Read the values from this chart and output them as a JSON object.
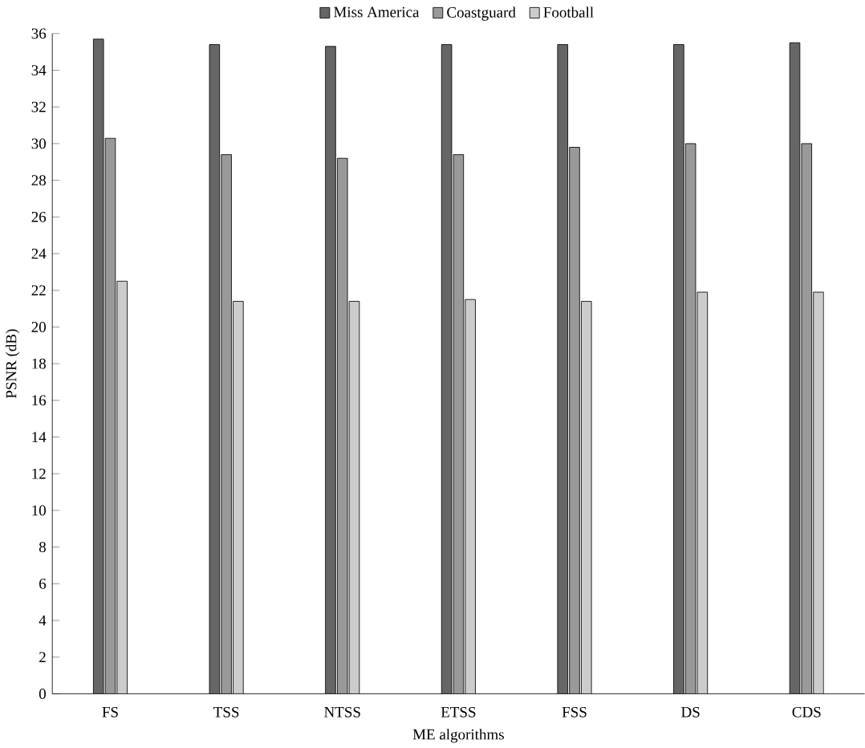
{
  "chart_data": {
    "type": "bar",
    "xlabel": "ME algorithms",
    "ylabel": "PSNR (dB)",
    "categories": [
      "FS",
      "TSS",
      "NTSS",
      "ETSS",
      "FSS",
      "DS",
      "CDS"
    ],
    "series": [
      {
        "name": "Miss America",
        "color": "#666666",
        "values": [
          35.7,
          35.4,
          35.3,
          35.4,
          35.4,
          35.4,
          35.5
        ]
      },
      {
        "name": "Coastguard",
        "color": "#999999",
        "values": [
          30.3,
          29.4,
          29.2,
          29.4,
          29.8,
          30.0,
          30.0
        ]
      },
      {
        "name": "Football",
        "color": "#cccccc",
        "values": [
          22.5,
          21.4,
          21.4,
          21.5,
          21.4,
          21.9,
          21.9
        ]
      }
    ],
    "ylim": [
      0,
      36
    ],
    "yticks": [
      0,
      2,
      4,
      6,
      8,
      10,
      12,
      14,
      16,
      18,
      20,
      22,
      24,
      26,
      28,
      30,
      32,
      34,
      36
    ],
    "legend": "top",
    "grid": false
  }
}
